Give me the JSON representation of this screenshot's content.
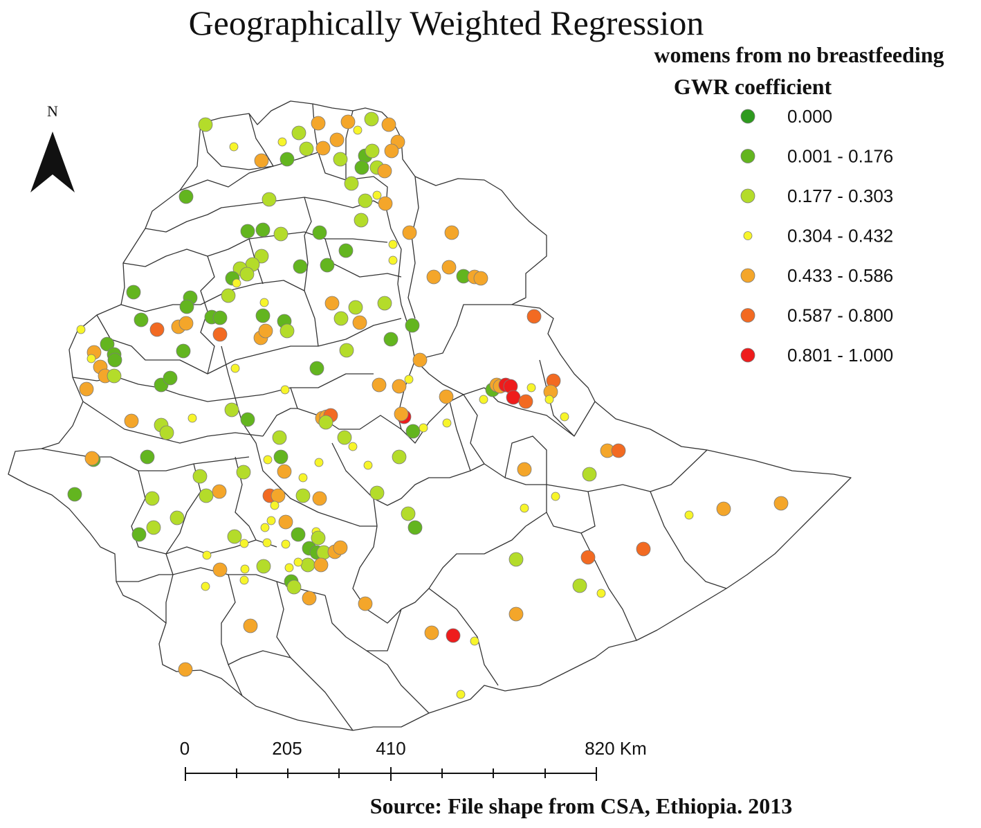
{
  "title": "Geographically Weighted Regression",
  "legend": {
    "title_line1": "womens from no breastfeeding",
    "title_line2": "GWR coefficient",
    "classes": [
      {
        "label": "0.000",
        "color": "#2e9a1e",
        "size": "large"
      },
      {
        "label": "0.001 - 0.176",
        "color": "#63b51f",
        "size": "large"
      },
      {
        "label": "0.177 - 0.303",
        "color": "#b4dc2a",
        "size": "large"
      },
      {
        "label": "0.304 - 0.432",
        "color": "#f7f52a",
        "size": "small"
      },
      {
        "label": "0.433 - 0.586",
        "color": "#f4a62a",
        "size": "large"
      },
      {
        "label": "0.587 - 0.800",
        "color": "#f26a22",
        "size": "large"
      },
      {
        "label": "0.801 - 1.000",
        "color": "#ee1c1c",
        "size": "large"
      }
    ]
  },
  "north_arrow": {
    "label": "N"
  },
  "scale_bar": {
    "labels": [
      "0",
      "205",
      "410",
      "820 Km"
    ]
  },
  "source": "Source: File shape from CSA, Ethiopia. 2013",
  "colors": {
    "boundary": "#333333",
    "dot_stroke": "#7a7a7a"
  }
}
